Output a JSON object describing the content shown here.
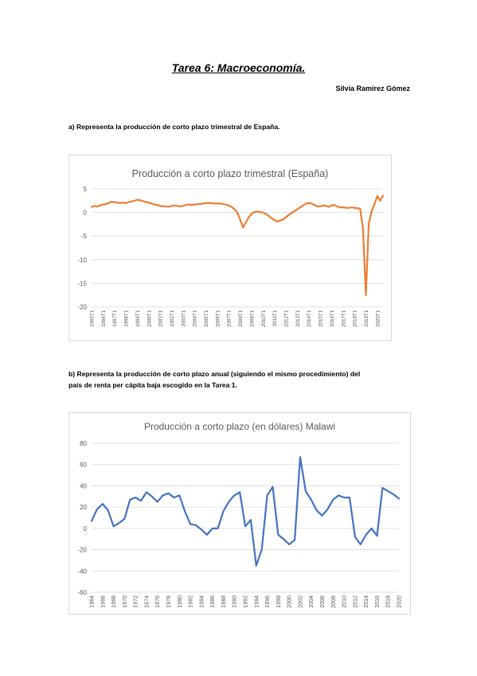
{
  "document": {
    "title": "Tarea 6: Macroeconomía.",
    "author": "Silvia Ramírez Gómez",
    "question_a": "a) Representa la producción de corto plazo trimestral de España.",
    "question_b_line1": "b) Representa la producción de corto plazo anual (siguiendo el mismo procedimiento) del",
    "question_b_line2": "país de renta per cápita baja escogido en la Tarea 1."
  },
  "chart_data": [
    {
      "type": "line",
      "title": "Producción a corto plazo trimestral (España)",
      "xlabel": "",
      "ylabel": "",
      "ylim": [
        -20,
        5
      ],
      "yticks": [
        5,
        0,
        -5,
        -10,
        -15,
        -20
      ],
      "grid": true,
      "color": "#ED7D31",
      "tick_labels": [
        "1995T1",
        "1996T1",
        "1997T1",
        "1998T1",
        "1999T1",
        "2000T1",
        "2001T1",
        "2002T1",
        "2003T1",
        "2004T1",
        "2005T1",
        "2006T1",
        "2007T1",
        "2008T1",
        "2009T1",
        "2010T1",
        "2011T1",
        "2012T1",
        "2013T1",
        "2014T1",
        "2015T1",
        "2016T1",
        "2017T1",
        "2018T1",
        "2019T1",
        "2020T1"
      ],
      "x_start_year": 1995,
      "values": [
        1.2,
        1.4,
        1.3,
        1.5,
        1.7,
        1.8,
        2.0,
        2.3,
        2.2,
        2.1,
        2.0,
        2.1,
        2.0,
        2.2,
        2.3,
        2.5,
        2.7,
        2.6,
        2.4,
        2.2,
        2.1,
        1.9,
        1.7,
        1.6,
        1.4,
        1.3,
        1.3,
        1.2,
        1.4,
        1.5,
        1.4,
        1.3,
        1.4,
        1.6,
        1.7,
        1.6,
        1.7,
        1.8,
        1.8,
        1.9,
        2.0,
        2.0,
        2.0,
        1.9,
        1.9,
        1.9,
        1.8,
        1.7,
        1.5,
        1.2,
        0.7,
        0.0,
        -1.5,
        -3.2,
        -2.1,
        -1.0,
        -0.3,
        0.1,
        0.2,
        0.1,
        0.0,
        -0.3,
        -0.7,
        -1.2,
        -1.6,
        -1.9,
        -1.7,
        -1.5,
        -1.0,
        -0.5,
        -0.1,
        0.3,
        0.7,
        1.1,
        1.5,
        1.9,
        2.0,
        1.9,
        1.6,
        1.3,
        1.3,
        1.5,
        1.4,
        1.2,
        1.5,
        1.6,
        1.3,
        1.1,
        1.1,
        1.0,
        1.0,
        1.1,
        1.0,
        0.9,
        0.8,
        -3.5,
        -17.5,
        -2.5,
        0.3,
        1.8,
        3.5,
        2.5,
        3.6
      ]
    },
    {
      "type": "line",
      "title": "Producción a corto plazo (en dólares) Malawi",
      "xlabel": "",
      "ylabel": "",
      "ylim": [
        -60,
        80
      ],
      "yticks": [
        80,
        60,
        40,
        20,
        0,
        -20,
        -40,
        -60
      ],
      "grid": true,
      "color": "#4472C4",
      "x": [
        1964,
        1965,
        1966,
        1967,
        1968,
        1969,
        1970,
        1971,
        1972,
        1973,
        1974,
        1975,
        1976,
        1977,
        1978,
        1979,
        1980,
        1981,
        1982,
        1983,
        1984,
        1985,
        1986,
        1987,
        1988,
        1989,
        1990,
        1991,
        1992,
        1993,
        1994,
        1995,
        1996,
        1997,
        1998,
        1999,
        2000,
        2001,
        2002,
        2003,
        2004,
        2005,
        2006,
        2007,
        2008,
        2009,
        2010,
        2011,
        2012,
        2013,
        2014,
        2015,
        2016,
        2017,
        2018,
        2019,
        2020
      ],
      "tick_labels": [
        "1964",
        "1966",
        "1968",
        "1970",
        "1972",
        "1974",
        "1976",
        "1978",
        "1980",
        "1982",
        "1984",
        "1986",
        "1988",
        "1990",
        "1992",
        "1994",
        "1996",
        "1998",
        "2000",
        "2002",
        "2004",
        "2006",
        "2008",
        "2010",
        "2012",
        "2014",
        "2016",
        "2018",
        "2020"
      ],
      "values": [
        7,
        18,
        23,
        17,
        2,
        5,
        9,
        27,
        29,
        26,
        34,
        30,
        25,
        31,
        33,
        29,
        31,
        16,
        4,
        3,
        -1,
        -6,
        0,
        0,
        16,
        25,
        31,
        34,
        2,
        8,
        -35,
        -20,
        31,
        39,
        -6,
        -10,
        -15,
        -11,
        67,
        35,
        27,
        17,
        12,
        18,
        27,
        31,
        29,
        29,
        -8,
        -15,
        -6,
        0,
        -7,
        38,
        35,
        32,
        28
      ]
    }
  ]
}
